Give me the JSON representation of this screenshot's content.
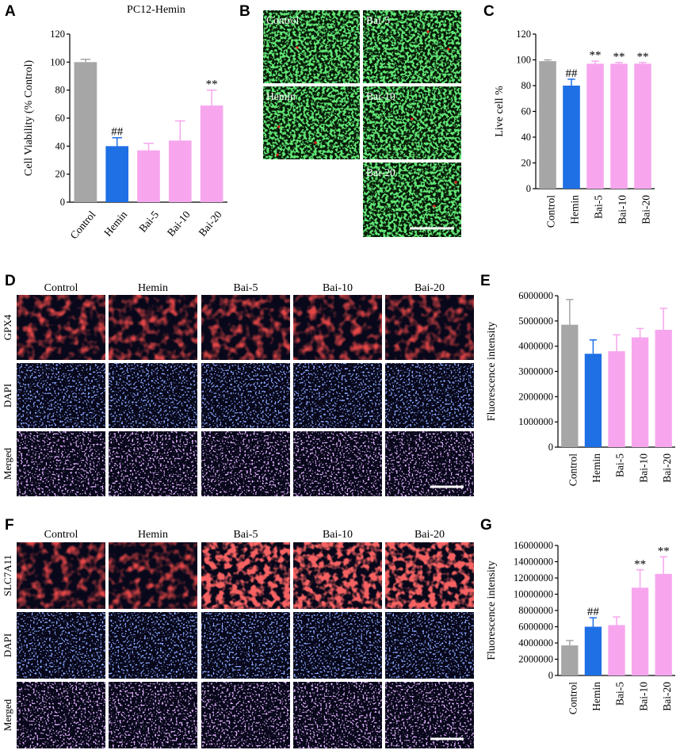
{
  "panels": {
    "A": {
      "label": "A"
    },
    "B": {
      "label": "B"
    },
    "C": {
      "label": "C"
    },
    "D": {
      "label": "D"
    },
    "E": {
      "label": "E"
    },
    "F": {
      "label": "F"
    },
    "G": {
      "label": "G"
    }
  },
  "chart_data": [
    {
      "id": "A",
      "type": "bar",
      "title": "PC12-Hemin",
      "ylabel": "Cell Viability  (% Control)",
      "categories": [
        "Control",
        "Hemin",
        "Bai-5",
        "Bai-10",
        "Bai-20"
      ],
      "values": [
        100,
        40,
        37,
        44,
        69
      ],
      "errors": [
        2,
        6,
        5,
        14,
        11
      ],
      "annotations": [
        "",
        "##",
        "",
        "",
        "**"
      ],
      "ylim": [
        0,
        120
      ],
      "yticks": [
        0,
        20,
        40,
        60,
        80,
        100,
        120
      ],
      "colors": [
        "#a6a6a6",
        "#1f6fe5",
        "#f7a6ee",
        "#f7a6ee",
        "#f7a6ee"
      ]
    },
    {
      "id": "C",
      "type": "bar",
      "title": "",
      "ylabel": "Live cell %",
      "categories": [
        "Control",
        "Hemin",
        "Bai-5",
        "Bai-10",
        "Bai-20"
      ],
      "values": [
        99,
        80,
        97,
        97,
        97
      ],
      "errors": [
        1,
        5,
        2,
        1,
        1
      ],
      "annotations": [
        "",
        "##",
        "**",
        "**",
        "**"
      ],
      "ylim": [
        0,
        120
      ],
      "yticks": [
        0,
        20,
        40,
        60,
        80,
        100,
        120
      ],
      "colors": [
        "#a6a6a6",
        "#1f6fe5",
        "#f7a6ee",
        "#f7a6ee",
        "#f7a6ee"
      ]
    },
    {
      "id": "E",
      "type": "bar",
      "title": "",
      "ylabel": "Fluorescence intensity",
      "categories": [
        "Control",
        "Hemin",
        "Bai-5",
        "Bai-10",
        "Bai-20"
      ],
      "values": [
        4850000,
        3700000,
        3800000,
        4350000,
        4650000
      ],
      "errors": [
        1000000,
        550000,
        650000,
        350000,
        850000
      ],
      "annotations": [
        "",
        "",
        "",
        "",
        ""
      ],
      "ylim": [
        0,
        6000000
      ],
      "yticks": [
        0,
        1000000,
        2000000,
        3000000,
        4000000,
        5000000,
        6000000
      ],
      "colors": [
        "#a6a6a6",
        "#1f6fe5",
        "#f7a6ee",
        "#f7a6ee",
        "#f7a6ee"
      ]
    },
    {
      "id": "G",
      "type": "bar",
      "title": "",
      "ylabel": "Fluorescence intensity",
      "categories": [
        "Control",
        "Hemin",
        "Bai-5",
        "Bai-10",
        "Bai-20"
      ],
      "values": [
        3700000,
        6000000,
        6200000,
        10800000,
        12500000
      ],
      "errors": [
        600000,
        1100000,
        1000000,
        2200000,
        2100000
      ],
      "annotations": [
        "",
        "##",
        "",
        "**",
        "**"
      ],
      "ylim": [
        0,
        16000000
      ],
      "yticks": [
        0,
        2000000,
        4000000,
        6000000,
        8000000,
        10000000,
        12000000,
        14000000,
        16000000
      ],
      "colors": [
        "#a6a6a6",
        "#1f6fe5",
        "#f7a6ee",
        "#f7a6ee",
        "#f7a6ee"
      ]
    }
  ],
  "micrographs": {
    "B": {
      "tiles": [
        {
          "label": "Control"
        },
        {
          "label": "Bai-5"
        },
        {
          "label": "Hemin"
        },
        {
          "label": "Bai-10"
        },
        {
          "label": "Bai-20"
        }
      ]
    },
    "D": {
      "columns": [
        "Control",
        "Hemin",
        "Bai-5",
        "Bai-10",
        "Bai-20"
      ],
      "rows": [
        "GPX4",
        "DAPI",
        "Merged"
      ]
    },
    "F": {
      "columns": [
        "Control",
        "Hemin",
        "Bai-5",
        "Bai-10",
        "Bai-20"
      ],
      "rows": [
        "SLC7A11",
        "DAPI",
        "Merged"
      ]
    }
  }
}
